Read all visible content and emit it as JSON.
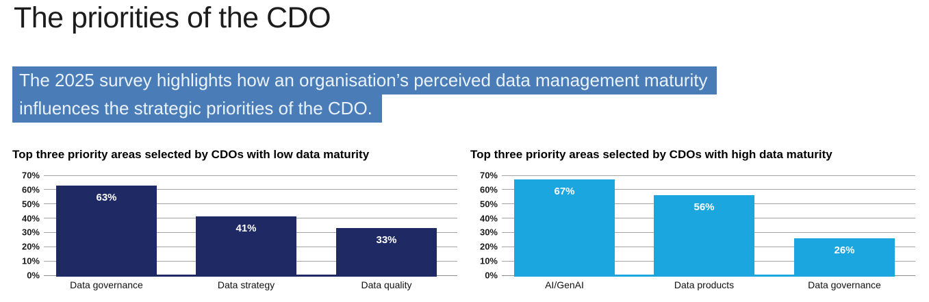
{
  "page": {
    "title": "The priorities of the CDO",
    "highlight_line1": "The 2025 survey highlights how an organisation’s perceived data management maturity",
    "highlight_line2": "influences the strategic priorities of the CDO.",
    "colors": {
      "highlight_bg": "#4A7CB8",
      "highlight_text": "#E9F2FB",
      "gridline": "#A3A3A3"
    }
  },
  "chart_data": [
    {
      "type": "bar",
      "title": "Top three priority areas selected by CDOs with low data maturity",
      "categories": [
        "Data governance",
        "Data strategy",
        "Data quality"
      ],
      "values": [
        63,
        41,
        33
      ],
      "value_labels": [
        "63%",
        "41%",
        "33%"
      ],
      "bar_color": "#1F2A64",
      "y_ticks": [
        "0%",
        "10%",
        "20%",
        "30%",
        "40%",
        "50%",
        "60%",
        "70%"
      ],
      "ylim": [
        0,
        70
      ],
      "grid": true,
      "legend": false
    },
    {
      "type": "bar",
      "title": "Top three priority areas selected by CDOs with high data maturity",
      "categories": [
        "AI/GenAI",
        "Data products",
        "Data governance"
      ],
      "values": [
        67,
        56,
        26
      ],
      "value_labels": [
        "67%",
        "56%",
        "26%"
      ],
      "bar_color": "#1CA6E0",
      "y_ticks": [
        "0%",
        "10%",
        "20%",
        "30%",
        "40%",
        "50%",
        "60%",
        "70%"
      ],
      "ylim": [
        0,
        70
      ],
      "grid": true,
      "legend": false
    }
  ]
}
